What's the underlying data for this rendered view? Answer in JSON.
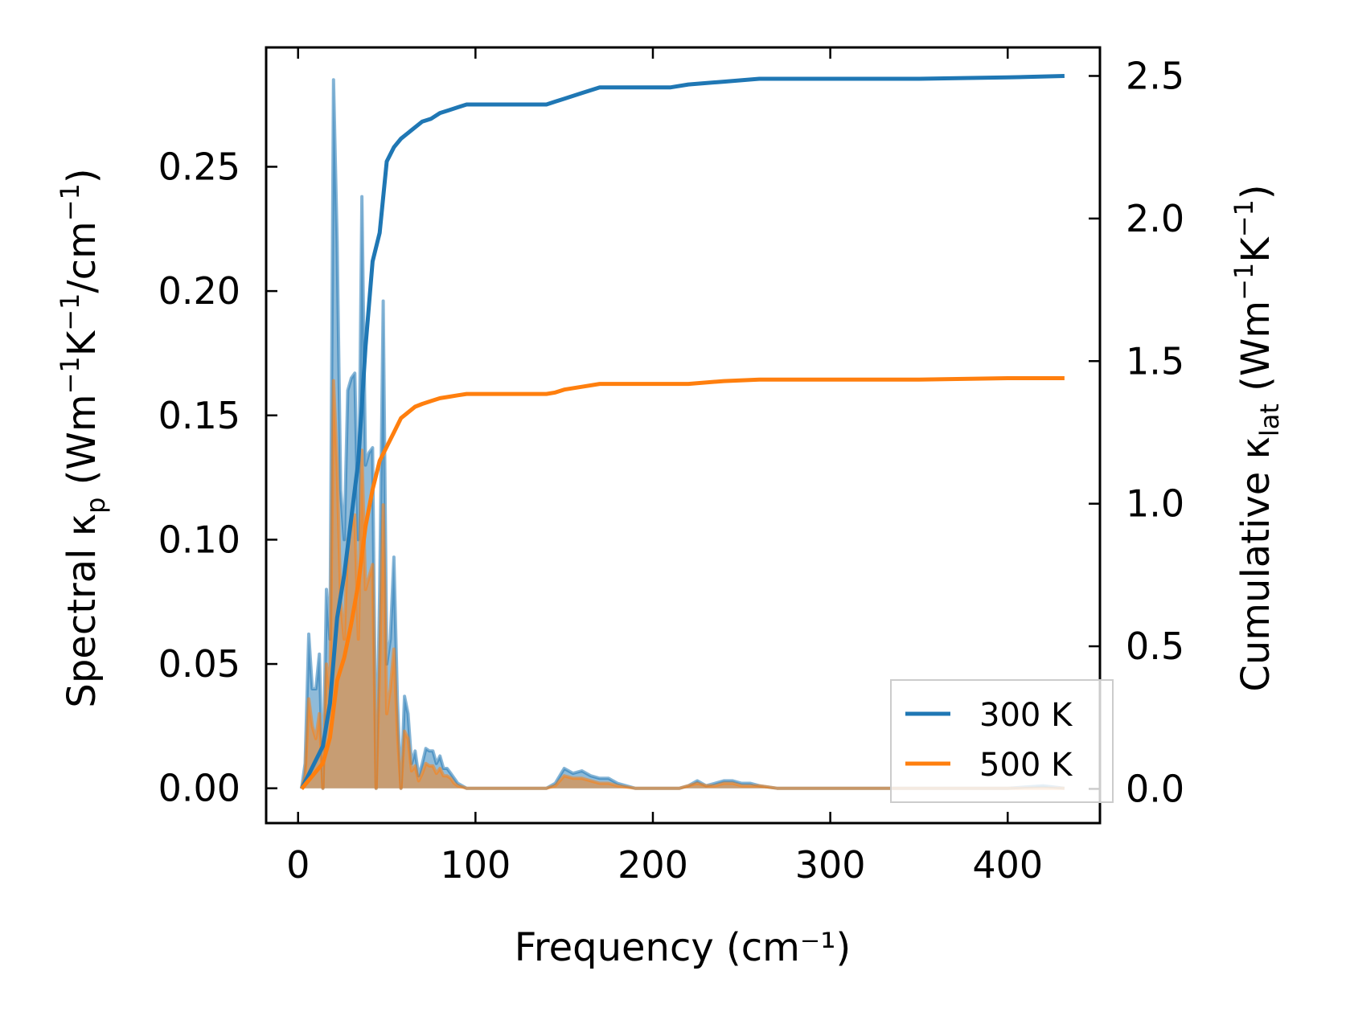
{
  "chart_data": {
    "type": "area",
    "xlabel": "Frequency (cm⁻¹)",
    "ylabel_left": "Spectral κₚ (Wm⁻¹K⁻¹/cm⁻¹)",
    "ylabel_right": "Cumulative κ_lat (Wm⁻¹K⁻¹)",
    "xlim": [
      -18,
      452
    ],
    "ylim_left": [
      -0.014,
      0.298
    ],
    "ylim_right": [
      -0.12,
      2.6
    ],
    "xticks": [
      0,
      100,
      200,
      300,
      400
    ],
    "xtick_labels": [
      "0",
      "100",
      "200",
      "300",
      "400"
    ],
    "yticks_left": [
      0.0,
      0.05,
      0.1,
      0.15,
      0.2,
      0.25
    ],
    "ytick_labels_left": [
      "0.00",
      "0.05",
      "0.10",
      "0.15",
      "0.20",
      "0.25"
    ],
    "yticks_right": [
      0.0,
      0.5,
      1.0,
      1.5,
      2.0,
      2.5
    ],
    "ytick_labels_right": [
      "0.0",
      "0.5",
      "1.0",
      "1.5",
      "2.0",
      "2.5"
    ],
    "grid": false,
    "legend": {
      "position": "lower-right",
      "entries": [
        {
          "label": "300 K",
          "color": "#1f77b4"
        },
        {
          "label": "500 K",
          "color": "#ff7f0e"
        }
      ]
    },
    "spectral_x": [
      2,
      4,
      6,
      8,
      10,
      12,
      14,
      16,
      18,
      20,
      22,
      24,
      26,
      28,
      30,
      32,
      34,
      36,
      38,
      40,
      42,
      44,
      46,
      48,
      50,
      52,
      54,
      56,
      58,
      60,
      62,
      64,
      66,
      68,
      70,
      72,
      74,
      76,
      78,
      80,
      82,
      84,
      86,
      88,
      90,
      95,
      100,
      110,
      120,
      130,
      140,
      145,
      150,
      155,
      160,
      165,
      170,
      175,
      180,
      190,
      200,
      210,
      215,
      220,
      225,
      230,
      235,
      240,
      245,
      250,
      255,
      260,
      270,
      280,
      300,
      320,
      340,
      360,
      380,
      400,
      420,
      432
    ],
    "series": [
      {
        "name": "300 K",
        "color": "#1f77b4",
        "spectral": [
          0.0,
          0.01,
          0.062,
          0.04,
          0.04,
          0.054,
          0.0,
          0.08,
          0.06,
          0.285,
          0.22,
          0.12,
          0.1,
          0.16,
          0.165,
          0.167,
          0.1,
          0.238,
          0.13,
          0.135,
          0.137,
          0.0,
          0.08,
          0.196,
          0.05,
          0.06,
          0.093,
          0.035,
          0.0,
          0.037,
          0.03,
          0.01,
          0.015,
          0.005,
          0.01,
          0.016,
          0.015,
          0.015,
          0.01,
          0.013,
          0.008,
          0.008,
          0.006,
          0.004,
          0.002,
          0.0,
          0.0,
          0.0,
          0.0,
          0.0,
          0.0,
          0.002,
          0.008,
          0.006,
          0.007,
          0.005,
          0.004,
          0.004,
          0.002,
          0.0,
          0.0,
          0.0,
          0.0,
          0.001,
          0.003,
          0.001,
          0.002,
          0.003,
          0.003,
          0.002,
          0.002,
          0.001,
          0.0,
          0.0,
          0.0,
          0.0,
          0.0,
          0.0,
          0.0,
          0.0,
          0.001,
          0.0
        ],
        "cumulative_x": [
          2,
          10,
          14,
          18,
          22,
          26,
          30,
          34,
          38,
          42,
          46,
          50,
          54,
          58,
          62,
          66,
          70,
          75,
          80,
          85,
          90,
          95,
          100,
          120,
          140,
          145,
          150,
          160,
          170,
          180,
          200,
          210,
          220,
          240,
          260,
          300,
          350,
          400,
          432
        ],
        "cumulative": [
          0.0,
          0.1,
          0.15,
          0.3,
          0.6,
          0.75,
          0.95,
          1.15,
          1.55,
          1.85,
          1.95,
          2.2,
          2.25,
          2.28,
          2.3,
          2.32,
          2.34,
          2.35,
          2.37,
          2.38,
          2.39,
          2.4,
          2.4,
          2.4,
          2.4,
          2.41,
          2.42,
          2.44,
          2.46,
          2.46,
          2.46,
          2.46,
          2.47,
          2.48,
          2.49,
          2.49,
          2.49,
          2.495,
          2.5
        ]
      },
      {
        "name": "500 K",
        "color": "#ff7f0e",
        "spectral": [
          0.0,
          0.005,
          0.036,
          0.025,
          0.02,
          0.03,
          0.0,
          0.05,
          0.04,
          0.164,
          0.13,
          0.075,
          0.06,
          0.1,
          0.105,
          0.11,
          0.06,
          0.136,
          0.08,
          0.085,
          0.09,
          0.0,
          0.05,
          0.114,
          0.03,
          0.04,
          0.056,
          0.022,
          0.0,
          0.023,
          0.02,
          0.007,
          0.009,
          0.003,
          0.006,
          0.01,
          0.009,
          0.009,
          0.006,
          0.008,
          0.005,
          0.005,
          0.004,
          0.002,
          0.001,
          0.0,
          0.0,
          0.0,
          0.0,
          0.0,
          0.0,
          0.001,
          0.005,
          0.004,
          0.004,
          0.003,
          0.002,
          0.002,
          0.001,
          0.0,
          0.0,
          0.0,
          0.0,
          0.001,
          0.002,
          0.001,
          0.001,
          0.002,
          0.002,
          0.001,
          0.001,
          0.001,
          0.0,
          0.0,
          0.0,
          0.0,
          0.0,
          0.0,
          0.0,
          0.0,
          0.0,
          0.0
        ],
        "cumulative_x": [
          2,
          10,
          14,
          18,
          22,
          26,
          30,
          34,
          38,
          42,
          46,
          50,
          54,
          58,
          62,
          66,
          70,
          75,
          80,
          85,
          90,
          95,
          100,
          120,
          140,
          145,
          150,
          160,
          170,
          180,
          200,
          210,
          220,
          240,
          260,
          300,
          350,
          400,
          432
        ],
        "cumulative": [
          0.0,
          0.06,
          0.09,
          0.18,
          0.38,
          0.46,
          0.58,
          0.72,
          0.92,
          1.05,
          1.15,
          1.2,
          1.25,
          1.3,
          1.32,
          1.34,
          1.35,
          1.36,
          1.37,
          1.375,
          1.38,
          1.385,
          1.385,
          1.385,
          1.385,
          1.39,
          1.4,
          1.41,
          1.42,
          1.42,
          1.42,
          1.42,
          1.42,
          1.43,
          1.435,
          1.435,
          1.435,
          1.44,
          1.44
        ]
      }
    ]
  }
}
